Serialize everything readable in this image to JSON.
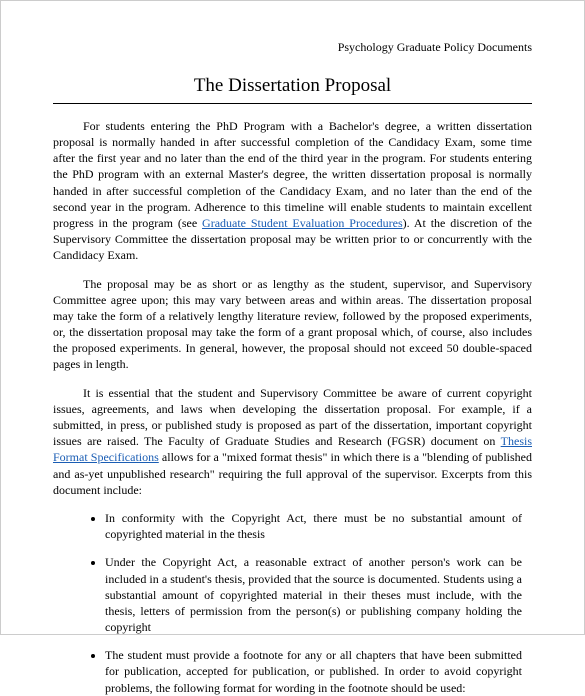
{
  "header": {
    "label": "Psychology Graduate Policy Documents"
  },
  "title": "The Dissertation Proposal",
  "para1": {
    "pre": "For students entering the PhD Program with a Bachelor's degree, a written dissertation proposal is normally handed in after successful completion of the Candidacy Exam, some time after the first year and no later than the end of the third year in the program. For students entering the PhD program with an external Master's degree, the written dissertation proposal is normally handed in after successful completion of the Candidacy Exam, and no later than the end of the second year in the program. Adherence to this timeline will enable students to maintain excellent progress in the program (see ",
    "link": "Graduate Student Evaluation Procedures",
    "post": "). At the discretion of the Supervisory Committee the dissertation proposal may be written prior to or concurrently with the Candidacy Exam."
  },
  "para2": "The proposal may be as short or as lengthy as the student, supervisor, and Supervisory Committee agree upon; this may vary between areas and within areas. The dissertation proposal may take the form of a relatively lengthy literature review, followed by the proposed experiments, or, the dissertation proposal may take the form of a grant proposal which, of course, also includes the proposed experiments. In general, however, the proposal should not exceed 50 double-spaced pages in length.",
  "para3": {
    "pre": "It is essential that the student and Supervisory Committee be aware of current copyright issues, agreements, and laws when developing the dissertation proposal. For example, if a submitted, in press, or published study is proposed as part of the dissertation, important copyright issues are raised. The  Faculty of Graduate Studies and Research (FGSR) document on ",
    "link": "Thesis Format Specifications",
    "post": " allows for a \"mixed format thesis\" in which there is a \"blending of published and as-yet unpublished research\" requiring the full approval of the supervisor. Excerpts from this document include:"
  },
  "bullets": [
    "In conformity with the Copyright Act, there must be no substantial amount of copyrighted material in the thesis",
    "Under the Copyright Act, a reasonable extract of another person's work can be included in a student's thesis, provided that the source is documented. Students using a substantial amount of copyrighted material in their theses must include, with the thesis, letters of permission from the person(s) or publishing company holding the copyright",
    "The student must provide a footnote for any or all chapters that have been submitted for publication, accepted for publication, or published. In order to avoid copyright problems, the following format for wording in the footnote should be used:"
  ],
  "colors": {
    "link": "#1a5db4",
    "text": "#000000",
    "bg": "#ffffff"
  }
}
